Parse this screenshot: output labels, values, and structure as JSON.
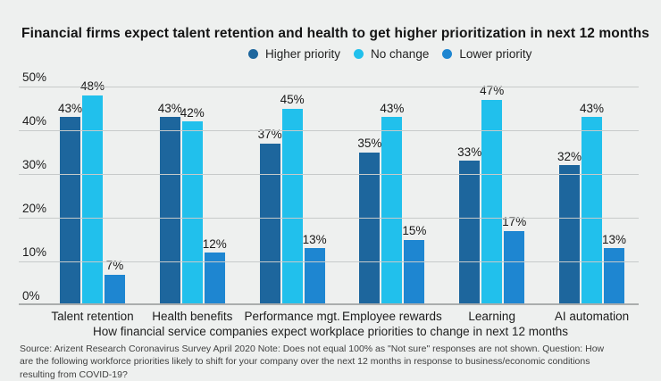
{
  "title": "Financial firms expect talent retention and health to get higher prioritization in next 12 months",
  "chart_data": {
    "type": "bar",
    "title": "Financial firms expect talent retention and health to get higher prioritization in next 12 months",
    "categories": [
      "Talent retention",
      "Health benefits",
      "Performance mgt.",
      "Employee rewards",
      "Learning",
      "AI automation"
    ],
    "series": [
      {
        "name": "Higher priority",
        "color": "#1d669d",
        "values": [
          43,
          43,
          37,
          35,
          33,
          32
        ]
      },
      {
        "name": "No change",
        "color": "#21c0ec",
        "values": [
          48,
          42,
          45,
          43,
          47,
          43
        ]
      },
      {
        "name": "Lower priority",
        "color": "#1e86d1",
        "values": [
          7,
          12,
          13,
          15,
          17,
          13
        ]
      }
    ],
    "data_label_suffix": "%",
    "yticks": [
      50,
      40,
      30,
      20,
      10,
      0
    ],
    "ytick_suffix": "%",
    "ylim": [
      0,
      50
    ],
    "grid": true,
    "legend_position": "top",
    "xlabel": "How financial service companies expect workplace priorities to change in next 12 months",
    "ylabel": ""
  },
  "footer": {
    "source": "Source: Arizent Research Coronavirus Survey April 2020 Note: Does not equal 100% as \"Not sure\" responses are not shown. Question: How are the following workforce priorities likely to shift for your company over the next 12 months in response to business/economic conditions resulting from COVID-19?"
  },
  "colors": {
    "background": "#eef0ef",
    "gridline": "#c7caca",
    "axisline": "#aaadad",
    "text": "#1a1a1a"
  }
}
